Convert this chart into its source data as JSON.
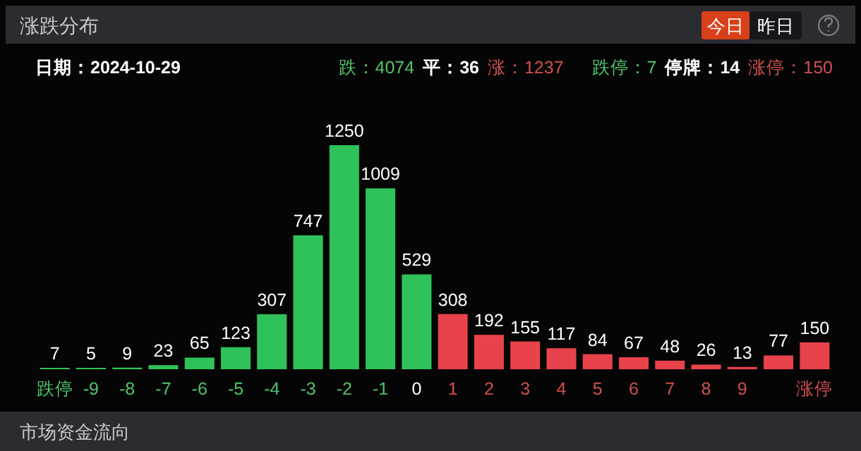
{
  "chart_data": {
    "type": "bar",
    "title": "涨跌分布",
    "categories": [
      "跌停",
      "-9",
      "-8",
      "-7",
      "-6",
      "-5",
      "-4",
      "-3",
      "-2",
      "-1",
      "0",
      "1",
      "2",
      "3",
      "4",
      "5",
      "6",
      "7",
      "8",
      "9",
      null,
      "涨停"
    ],
    "values": [
      7,
      5,
      9,
      23,
      65,
      123,
      307,
      747,
      1250,
      1009,
      529,
      308,
      192,
      155,
      117,
      84,
      67,
      48,
      26,
      13,
      77,
      150
    ],
    "colors": [
      "#2fc25b",
      "#2fc25b",
      "#2fc25b",
      "#2fc25b",
      "#2fc25b",
      "#2fc25b",
      "#2fc25b",
      "#2fc25b",
      "#2fc25b",
      "#2fc25b",
      "#2fc25b",
      "#e8434b",
      "#e8434b",
      "#e8434b",
      "#e8434b",
      "#e8434b",
      "#e8434b",
      "#e8434b",
      "#e8434b",
      "#e8434b",
      "#e8434b",
      "#e8434b"
    ],
    "tick_labels": "x",
    "data_labels": true,
    "annotations": [
      "今日",
      "昨日",
      "日期：2024-10-29",
      "跌：4074",
      "平：36",
      "涨：1237",
      "跌停：7",
      "停牌：14",
      "涨停：150",
      "市场资金流向"
    ]
  }
}
